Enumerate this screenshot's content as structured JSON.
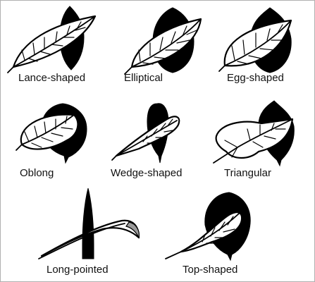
{
  "diagram": {
    "leaves": [
      {
        "id": "lance",
        "label": "Lance-shaped"
      },
      {
        "id": "elliptical",
        "label": "Elliptical"
      },
      {
        "id": "egg",
        "label": "Egg-shaped"
      },
      {
        "id": "oblong",
        "label": "Oblong"
      },
      {
        "id": "wedge",
        "label": "Wedge-shaped"
      },
      {
        "id": "triangular",
        "label": "Triangular"
      },
      {
        "id": "long-pointed",
        "label": "Long-pointed"
      },
      {
        "id": "top",
        "label": "Top-shaped"
      }
    ]
  },
  "colors": {
    "ink": "#000000",
    "paper": "#ffffff",
    "accent": "#9a9a9a"
  }
}
